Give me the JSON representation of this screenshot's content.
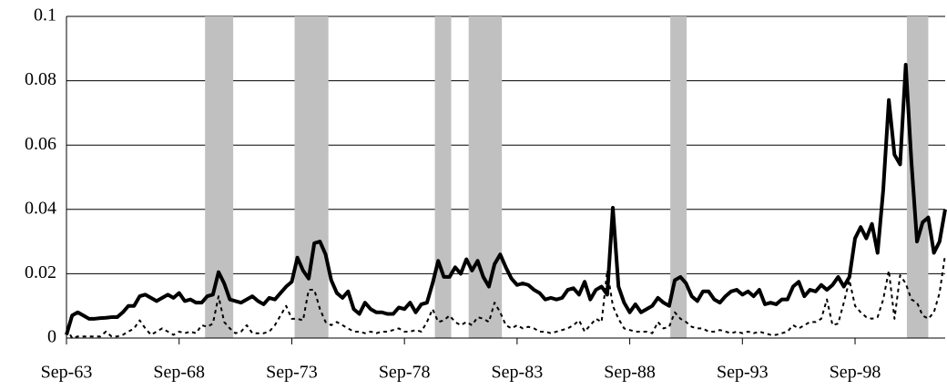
{
  "chart_data": {
    "type": "line",
    "categories": [
      "Sep-63",
      null,
      null,
      null,
      null,
      null,
      null,
      null,
      null,
      null,
      null,
      null,
      null,
      null,
      null,
      null,
      null,
      null,
      null,
      null,
      "Sep-68",
      null,
      null,
      null,
      null,
      null,
      null,
      null,
      null,
      null,
      null,
      null,
      null,
      null,
      null,
      null,
      null,
      null,
      null,
      null,
      "Sep-73",
      null,
      null,
      null,
      null,
      null,
      null,
      null,
      null,
      null,
      null,
      null,
      null,
      null,
      null,
      null,
      null,
      null,
      null,
      null,
      "Sep-78",
      null,
      null,
      null,
      null,
      null,
      null,
      null,
      null,
      null,
      null,
      null,
      null,
      null,
      null,
      null,
      null,
      null,
      null,
      null,
      "Sep-83",
      null,
      null,
      null,
      null,
      null,
      null,
      null,
      null,
      null,
      null,
      null,
      null,
      null,
      null,
      null,
      null,
      null,
      null,
      null,
      "Sep-88",
      null,
      null,
      null,
      null,
      null,
      null,
      null,
      null,
      null,
      null,
      null,
      null,
      null,
      null,
      null,
      null,
      null,
      null,
      null,
      "Sep-93",
      null,
      null,
      null,
      null,
      null,
      null,
      null,
      null,
      null,
      null,
      null,
      null,
      null,
      null,
      null,
      null,
      null,
      null,
      null,
      "Sep-98",
      null,
      null,
      null,
      null,
      null,
      null,
      null,
      null,
      null,
      null,
      null,
      null,
      null,
      null,
      null,
      null
    ],
    "series": [
      {
        "color": "#000000",
        "line_style": "solid",
        "values": [
          0.001,
          0.007,
          0.008,
          0.007,
          0.006,
          0.006,
          0.0062,
          0.0063,
          0.0065,
          0.0065,
          0.008,
          0.01,
          0.01,
          0.013,
          0.0135,
          0.0125,
          0.0115,
          0.0125,
          0.0135,
          0.0125,
          0.014,
          0.0115,
          0.012,
          0.011,
          0.011,
          0.013,
          0.0135,
          0.0205,
          0.017,
          0.012,
          0.0115,
          0.011,
          0.012,
          0.013,
          0.0115,
          0.0105,
          0.0125,
          0.012,
          0.014,
          0.016,
          0.0175,
          0.025,
          0.021,
          0.0185,
          0.0295,
          0.03,
          0.026,
          0.018,
          0.014,
          0.0125,
          0.0145,
          0.009,
          0.0075,
          0.011,
          0.009,
          0.008,
          0.008,
          0.0075,
          0.0075,
          0.0095,
          0.009,
          0.011,
          0.008,
          0.0105,
          0.011,
          0.017,
          0.024,
          0.019,
          0.019,
          0.022,
          0.02,
          0.0245,
          0.021,
          0.024,
          0.019,
          0.016,
          0.023,
          0.026,
          0.022,
          0.0185,
          0.0165,
          0.017,
          0.0165,
          0.015,
          0.014,
          0.012,
          0.0125,
          0.012,
          0.0125,
          0.015,
          0.0155,
          0.0135,
          0.0175,
          0.012,
          0.015,
          0.016,
          0.0135,
          0.0405,
          0.016,
          0.011,
          0.008,
          0.0105,
          0.008,
          0.009,
          0.01,
          0.0125,
          0.011,
          0.01,
          0.018,
          0.019,
          0.017,
          0.013,
          0.0115,
          0.0145,
          0.0145,
          0.012,
          0.011,
          0.013,
          0.0145,
          0.015,
          0.0135,
          0.0145,
          0.013,
          0.015,
          0.0105,
          0.011,
          0.0105,
          0.012,
          0.012,
          0.016,
          0.0175,
          0.013,
          0.015,
          0.0145,
          0.0165,
          0.015,
          0.0165,
          0.019,
          0.016,
          0.019,
          0.031,
          0.0345,
          0.031,
          0.0355,
          0.0265,
          0.046,
          0.074,
          0.057,
          0.054,
          0.085,
          0.055,
          0.03,
          0.036,
          0.0375,
          0.0265,
          0.03,
          0.04
        ]
      },
      {
        "color": "#000000",
        "line_style": "dashed",
        "values": [
          0.003,
          0,
          0.0005,
          0.0005,
          0.0005,
          0.0005,
          0.0005,
          0.002,
          0.0005,
          0.0005,
          0.001,
          0.002,
          0.003,
          0.0055,
          0.003,
          0.001,
          0.002,
          0.003,
          0.002,
          0.001,
          0.002,
          0.0015,
          0.002,
          0.0015,
          0.004,
          0.0035,
          0.0045,
          0.013,
          0.005,
          0.003,
          0.0015,
          0.002,
          0.004,
          0.0015,
          0.0015,
          0.0015,
          0.002,
          0.004,
          0.007,
          0.01,
          0.006,
          0.006,
          0.0055,
          0.015,
          0.015,
          0.009,
          0.005,
          0.004,
          0.005,
          0.004,
          0.003,
          0.002,
          0.002,
          0.0015,
          0.002,
          0.0015,
          0.002,
          0.002,
          0.0025,
          0.003,
          0.002,
          0.002,
          0.0025,
          0.002,
          0.005,
          0.009,
          0.005,
          0.0055,
          0.007,
          0.005,
          0.004,
          0.005,
          0.004,
          0.0065,
          0.006,
          0.005,
          0.011,
          0.008,
          0.004,
          0.003,
          0.004,
          0.003,
          0.0035,
          0.003,
          0.002,
          0.002,
          0.0015,
          0.002,
          0.0025,
          0.003,
          0.004,
          0.0055,
          0.002,
          0.004,
          0.006,
          0.005,
          0.021,
          0.01,
          0.006,
          0.003,
          0.0025,
          0.002,
          0.002,
          0.002,
          0.0015,
          0.005,
          0.003,
          0.0035,
          0.008,
          0.006,
          0.005,
          0.0035,
          0.003,
          0.003,
          0.002,
          0.002,
          0.0025,
          0.002,
          0.0015,
          0.002,
          0.0015,
          0.002,
          0.0015,
          0.002,
          0.0015,
          0.001,
          0.001,
          0.0015,
          0.002,
          0.004,
          0.003,
          0.004,
          0.005,
          0.005,
          0.006,
          0.012,
          0.004,
          0.0045,
          0.011,
          0.018,
          0.01,
          0.008,
          0.0065,
          0.006,
          0.0065,
          0.012,
          0.021,
          0.006,
          0.0195,
          0.017,
          0.012,
          0.011,
          0.007,
          0.006,
          0.008,
          0.014,
          0.026
        ]
      }
    ],
    "shaded_periods": [
      [
        24.6,
        29.6
      ],
      [
        40.5,
        46.5
      ],
      [
        65.4,
        68.3
      ],
      [
        71.4,
        77.3
      ],
      [
        107.2,
        110.1
      ],
      [
        149.2,
        153
      ]
    ],
    "shade_color": "#c0c0c0",
    "ylim": [
      0,
      0.1
    ],
    "yticks": [
      0,
      0.02,
      0.04,
      0.06,
      0.08,
      0.1
    ],
    "grid": true
  }
}
